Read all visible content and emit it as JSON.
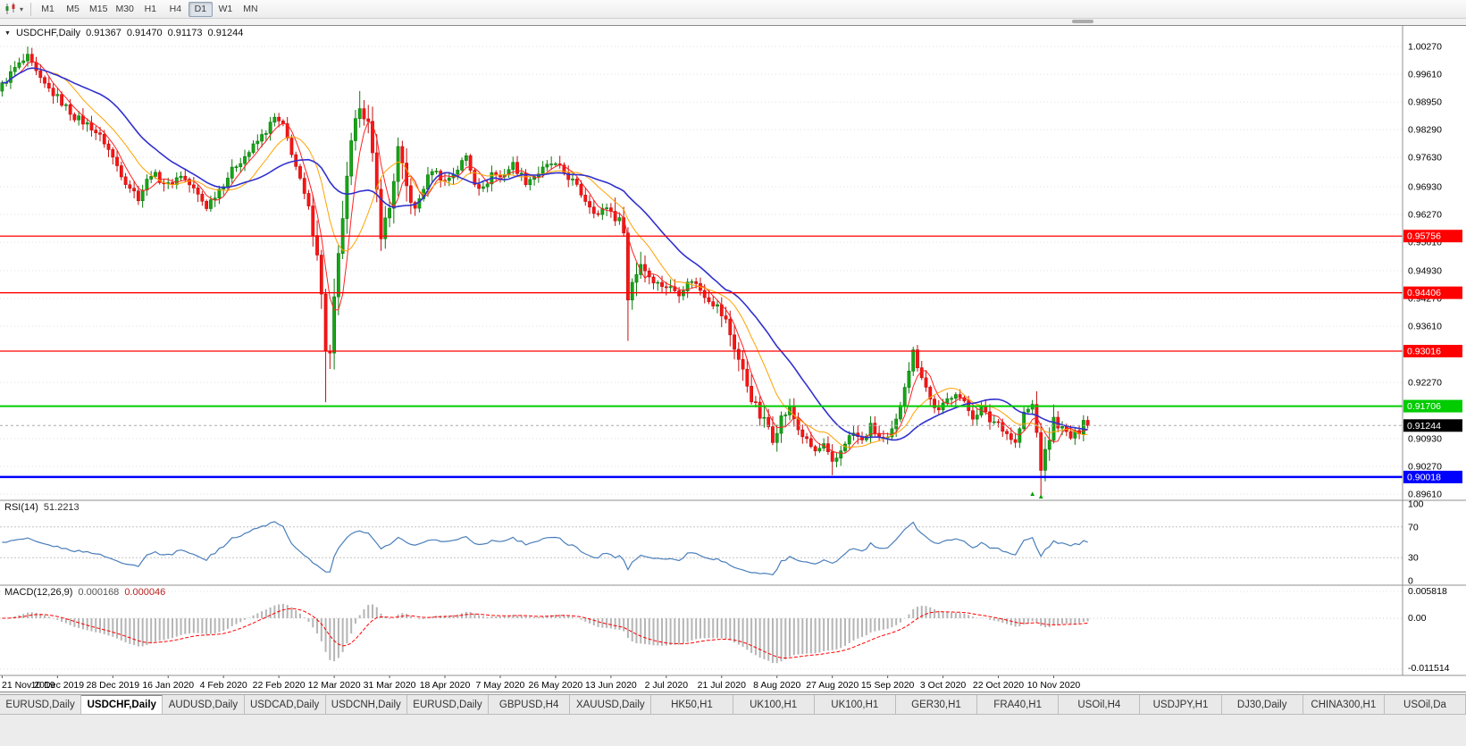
{
  "toolbar": {
    "timeframes": [
      {
        "label": "M1",
        "active": false
      },
      {
        "label": "M5",
        "active": false
      },
      {
        "label": "M15",
        "active": false
      },
      {
        "label": "M30",
        "active": false
      },
      {
        "label": "H1",
        "active": false
      },
      {
        "label": "H4",
        "active": false
      },
      {
        "label": "D1",
        "active": true
      },
      {
        "label": "W1",
        "active": false
      },
      {
        "label": "MN",
        "active": false
      }
    ]
  },
  "chart": {
    "title": {
      "symbol": "USDCHF,Daily",
      "open": "0.91367",
      "high": "0.91470",
      "low": "0.91173",
      "close": "0.91244"
    }
  },
  "rsi_panel": {
    "label": "RSI(14)",
    "value": "51.2213",
    "axis_labels": [
      "100",
      "70",
      "30",
      "0"
    ]
  },
  "macd_panel": {
    "label": "MACD(12,26,9)",
    "value_main": "0.000168",
    "value_signal": "0.000046",
    "axis_labels": {
      "top": "0.005818",
      "zero": "0.00",
      "bottom": "-0.011514"
    }
  },
  "chart_data": {
    "type": "candlestick",
    "symbol": "USDCHF",
    "timeframe": "Daily",
    "num_candles": 256,
    "candles_per_date_tick": 13,
    "ylim": [
      0.8946,
      1.0076
    ],
    "x_dates": [
      "21 Nov 2019",
      "10 Dec 2019",
      "28 Dec 2019",
      "16 Jan 2020",
      "4 Feb 2020",
      "22 Feb 2020",
      "12 Mar 2020",
      "31 Mar 2020",
      "18 Apr 2020",
      "7 May 2020",
      "26 May 2020",
      "13 Jun 2020",
      "2 Jul 2020",
      "21 Jul 2020",
      "8 Aug 2020",
      "27 Aug 2020",
      "15 Sep 2020",
      "3 Oct 2020",
      "22 Oct 2020",
      "10 Nov 2020"
    ],
    "close_path_anchors": [
      [
        0,
        0.9935
      ],
      [
        3,
        0.9975
      ],
      [
        6,
        1.0
      ],
      [
        9,
        0.9945
      ],
      [
        13,
        0.9905
      ],
      [
        17,
        0.986
      ],
      [
        21,
        0.9835
      ],
      [
        24,
        0.98
      ],
      [
        26,
        0.9762
      ],
      [
        29,
        0.9706
      ],
      [
        32,
        0.9668
      ],
      [
        35,
        0.9726
      ],
      [
        39,
        0.9696
      ],
      [
        42,
        0.9722
      ],
      [
        45,
        0.9686
      ],
      [
        48,
        0.9646
      ],
      [
        52,
        0.9702
      ],
      [
        55,
        0.9746
      ],
      [
        58,
        0.9776
      ],
      [
        62,
        0.9826
      ],
      [
        64,
        0.9856
      ],
      [
        66,
        0.9836
      ],
      [
        68,
        0.9776
      ],
      [
        70,
        0.9706
      ],
      [
        72,
        0.964
      ],
      [
        74,
        0.954
      ],
      [
        75,
        0.9432
      ],
      [
        76,
        0.9308
      ],
      [
        77,
        0.9292
      ],
      [
        78,
        0.942
      ],
      [
        79,
        0.9524
      ],
      [
        80,
        0.9622
      ],
      [
        82,
        0.9792
      ],
      [
        84,
        0.9892
      ],
      [
        86,
        0.9842
      ],
      [
        88,
        0.9682
      ],
      [
        89,
        0.9582
      ],
      [
        91,
        0.9642
      ],
      [
        93,
        0.9782
      ],
      [
        95,
        0.9692
      ],
      [
        97,
        0.9636
      ],
      [
        99,
        0.9692
      ],
      [
        101,
        0.9736
      ],
      [
        104,
        0.9706
      ],
      [
        107,
        0.9736
      ],
      [
        109,
        0.9766
      ],
      [
        111,
        0.9706
      ],
      [
        113,
        0.9686
      ],
      [
        115,
        0.9726
      ],
      [
        117,
        0.9716
      ],
      [
        120,
        0.9746
      ],
      [
        123,
        0.9706
      ],
      [
        126,
        0.9726
      ],
      [
        129,
        0.9748
      ],
      [
        131,
        0.9736
      ],
      [
        134,
        0.9706
      ],
      [
        137,
        0.9662
      ],
      [
        140,
        0.9626
      ],
      [
        142,
        0.9646
      ],
      [
        144,
        0.9622
      ],
      [
        146,
        0.9596
      ],
      [
        147,
        0.9422
      ],
      [
        148,
        0.9466
      ],
      [
        150,
        0.9512
      ],
      [
        152,
        0.9482
      ],
      [
        154,
        0.9462
      ],
      [
        156,
        0.9456
      ],
      [
        159,
        0.9442
      ],
      [
        162,
        0.9472
      ],
      [
        165,
        0.9436
      ],
      [
        168,
        0.9406
      ],
      [
        170,
        0.9372
      ],
      [
        172,
        0.9312
      ],
      [
        174,
        0.9252
      ],
      [
        176,
        0.9192
      ],
      [
        178,
        0.9146
      ],
      [
        180,
        0.9122
      ],
      [
        181,
        0.9096
      ],
      [
        183,
        0.9142
      ],
      [
        185,
        0.9166
      ],
      [
        187,
        0.9116
      ],
      [
        189,
        0.9086
      ],
      [
        191,
        0.9062
      ],
      [
        193,
        0.9076
      ],
      [
        195,
        0.9032
      ],
      [
        196,
        0.9046
      ],
      [
        198,
        0.9086
      ],
      [
        200,
        0.9106
      ],
      [
        202,
        0.9086
      ],
      [
        204,
        0.9122
      ],
      [
        206,
        0.9096
      ],
      [
        208,
        0.9086
      ],
      [
        210,
        0.9132
      ],
      [
        212,
        0.9226
      ],
      [
        214,
        0.9298
      ],
      [
        216,
        0.9246
      ],
      [
        218,
        0.9186
      ],
      [
        220,
        0.9156
      ],
      [
        222,
        0.9186
      ],
      [
        224,
        0.9206
      ],
      [
        226,
        0.9176
      ],
      [
        228,
        0.9146
      ],
      [
        230,
        0.9166
      ],
      [
        232,
        0.9136
      ],
      [
        234,
        0.9132
      ],
      [
        236,
        0.9106
      ],
      [
        238,
        0.9082
      ],
      [
        240,
        0.9152
      ],
      [
        242,
        0.9172
      ],
      [
        243,
        0.9106
      ],
      [
        244,
        0.9026
      ],
      [
        245,
        0.9056
      ],
      [
        247,
        0.9136
      ],
      [
        249,
        0.9116
      ],
      [
        251,
        0.9096
      ],
      [
        253,
        0.9112
      ],
      [
        255,
        0.91244
      ]
    ],
    "wick_overrides": [
      [
        6,
        "high",
        1.0027
      ],
      [
        76,
        "low",
        0.918
      ],
      [
        84,
        "high",
        0.9921
      ],
      [
        147,
        "low",
        0.9326
      ],
      [
        195,
        "low",
        0.9006
      ],
      [
        214,
        "high",
        0.9312
      ],
      [
        244,
        "low",
        0.8958
      ],
      [
        255,
        "high",
        0.9147
      ],
      [
        255,
        "low",
        0.91173
      ]
    ],
    "volatility_ranges": [
      [
        73,
        96,
        2.4
      ],
      [
        144,
        152,
        1.8
      ],
      [
        168,
        184,
        1.5
      ],
      [
        208,
        216,
        1.4
      ],
      [
        242,
        247,
        1.7
      ]
    ],
    "price_axis_labels": [
      {
        "text": "1.00270",
        "price": 1.0027
      },
      {
        "text": "0.99610",
        "price": 0.9961
      },
      {
        "text": "0.98950",
        "price": 0.9895
      },
      {
        "text": "0.98290",
        "price": 0.9829
      },
      {
        "text": "0.97630",
        "price": 0.9763
      },
      {
        "text": "0.96930",
        "price": 0.9693
      },
      {
        "text": "0.96270",
        "price": 0.9627
      },
      {
        "text": "0.95610",
        "price": 0.9561
      },
      {
        "text": "0.94930",
        "price": 0.9493
      },
      {
        "text": "0.94270",
        "price": 0.9427
      },
      {
        "text": "0.93610",
        "price": 0.9361
      },
      {
        "text": "0.92270",
        "price": 0.9227
      },
      {
        "text": "0.90930",
        "price": 0.9093
      },
      {
        "text": "0.90270",
        "price": 0.9027
      },
      {
        "text": "0.89610",
        "price": 0.8961
      }
    ],
    "levels": [
      {
        "price": 0.95756,
        "label": "0.95756",
        "color": "#ff0000",
        "line_width": 1.3
      },
      {
        "price": 0.94406,
        "label": "0.94406",
        "color": "#ff0000",
        "line_width": 1.3
      },
      {
        "price": 0.93016,
        "label": "0.93016",
        "color": "#ff0000",
        "line_width": 1.3
      },
      {
        "price": 0.91706,
        "label": "0.91706",
        "color": "#00cc00",
        "line_width": 2
      },
      {
        "price": 0.90018,
        "label": "0.90018",
        "color": "#0000ff",
        "line_width": 2.5
      }
    ],
    "current_price": 0.91244,
    "current_price_label": "0.91244",
    "moving_averages": [
      {
        "period": 5,
        "color": "#ff2020",
        "width": 1
      },
      {
        "period": 12,
        "color": "#ffa200",
        "width": 1
      },
      {
        "period": 24,
        "color": "#3030cf",
        "width": 1.6
      }
    ],
    "rsi": {
      "period": 14,
      "levels": [
        70,
        30
      ],
      "axis_values": [
        100,
        70,
        30,
        0
      ]
    },
    "macd": {
      "fast": 12,
      "slow": 26,
      "signal": 9,
      "axis_max": 0.005818,
      "axis_min": -0.011514
    },
    "markers": [
      {
        "i": 242,
        "price": 0.8968
      },
      {
        "i": 244,
        "price": 0.8958
      }
    ],
    "colors": {
      "bull": "#17a617",
      "bull_border": "#0c7a0c",
      "bear": "#fb1414",
      "bear_border": "#c40e0e",
      "grid": "#e0e0e0",
      "rsi_line": "#4a7ebb",
      "rsi_grid": "#c4c4c4",
      "macd_bar": "#b5b5b5",
      "macd_signal": "#ff0000",
      "current_line": "#aaaaaa",
      "separator": "#909090"
    }
  },
  "tabs": [
    {
      "label": "EURUSD,Daily",
      "active": false
    },
    {
      "label": "USDCHF,Daily",
      "active": true
    },
    {
      "label": "AUDUSD,Daily",
      "active": false
    },
    {
      "label": "USDCAD,Daily",
      "active": false
    },
    {
      "label": "USDCNH,Daily",
      "active": false
    },
    {
      "label": "EURUSD,Daily",
      "active": false
    },
    {
      "label": "GBPUSD,H4",
      "active": false
    },
    {
      "label": "XAUUSD,Daily",
      "active": false
    },
    {
      "label": "HK50,H1",
      "active": false
    },
    {
      "label": "UK100,H1",
      "active": false
    },
    {
      "label": "UK100,H1",
      "active": false
    },
    {
      "label": "GER30,H1",
      "active": false
    },
    {
      "label": "FRA40,H1",
      "active": false
    },
    {
      "label": "USOil,H4",
      "active": false
    },
    {
      "label": "USDJPY,H1",
      "active": false
    },
    {
      "label": "DJ30,Daily",
      "active": false
    },
    {
      "label": "CHINA300,H1",
      "active": false
    },
    {
      "label": "USOil,Da",
      "active": false
    }
  ]
}
